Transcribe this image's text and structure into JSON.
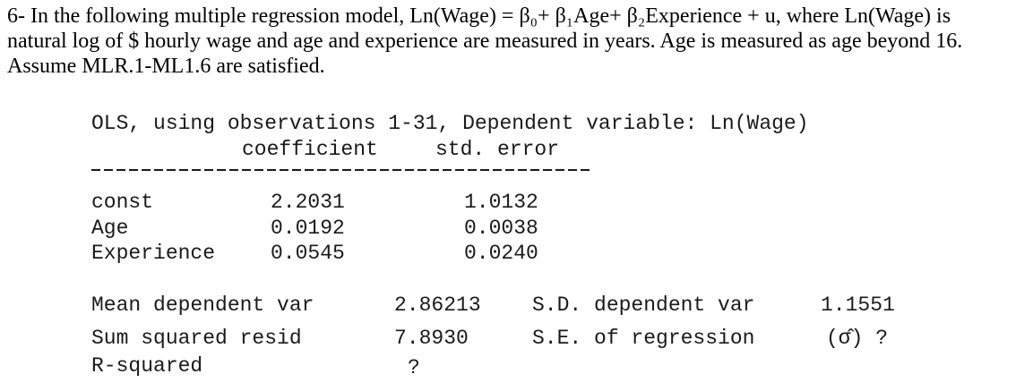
{
  "question": {
    "line1": "6- In the following multiple regression model, Ln(Wage) = β₀+ β₁Age+ β₂Experience + u, where Ln(Wage) is",
    "line2": "natural log of $ hourly wage and age and experience are measured in years. Age is measured as age beyond 16.",
    "line3": "Assume MLR.1-ML1.6 are satisfied."
  },
  "output": {
    "header": "OLS, using observations 1-31, Dependent variable: Ln(Wage)",
    "col_coef": "coefficient",
    "col_se": "std. error",
    "rows": [
      {
        "name": "const",
        "coef": "2.2031",
        "se": "1.0132"
      },
      {
        "name": "Age",
        "coef": "0.0192",
        "se": "0.0038"
      },
      {
        "name": "Experience",
        "coef": "0.0545",
        "se": "0.0240"
      }
    ],
    "stats": {
      "mean_dep_label": "Mean dependent var",
      "mean_dep_value": "2.86213",
      "sd_dep_label": "S.D. dependent var",
      "sd_dep_value": "1.1551",
      "ssr_label": "Sum squared resid",
      "ssr_value": "7.8930",
      "se_reg_label": "S.E. of regression",
      "se_reg_value": "(σ̂) ?",
      "r2_label": "R-squared",
      "r2_value": "?"
    }
  }
}
